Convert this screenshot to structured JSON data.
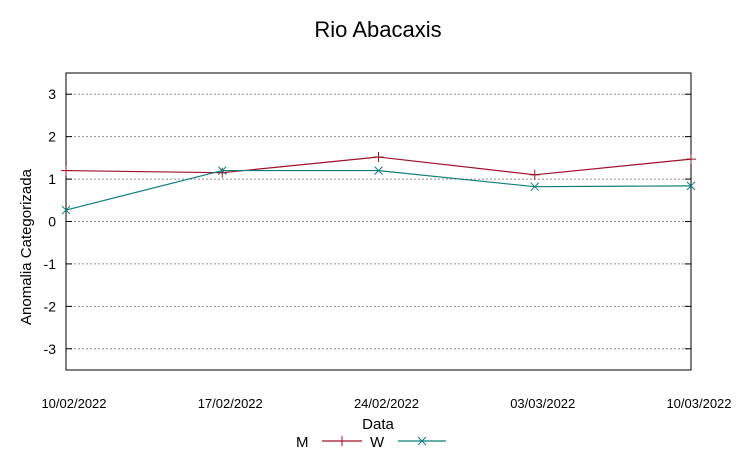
{
  "chart_data": {
    "type": "line",
    "title": "Rio Abacaxis",
    "xlabel": "Data",
    "ylabel": "Anomalia Categorizada",
    "categories": [
      "10/02/2022",
      "17/02/2022",
      "24/02/2022",
      "03/03/2022",
      "10/03/2022"
    ],
    "ylim": [
      -3.5,
      3.5
    ],
    "yticks": [
      3,
      2,
      1,
      0,
      -1,
      -2,
      -3
    ],
    "ytick_labels": [
      "3",
      "2",
      "1",
      "0",
      "-1",
      "-2",
      "-3"
    ],
    "grid": true,
    "legend_position": "bottom",
    "series": [
      {
        "name": "M",
        "color": "#a0102a",
        "marker": "plus",
        "values": [
          1.2,
          1.15,
          1.52,
          1.1,
          1.47
        ]
      },
      {
        "name": "W",
        "color": "#0f7d7d",
        "marker": "cross",
        "values": [
          0.27,
          1.2,
          1.2,
          0.82,
          0.84
        ]
      }
    ]
  }
}
